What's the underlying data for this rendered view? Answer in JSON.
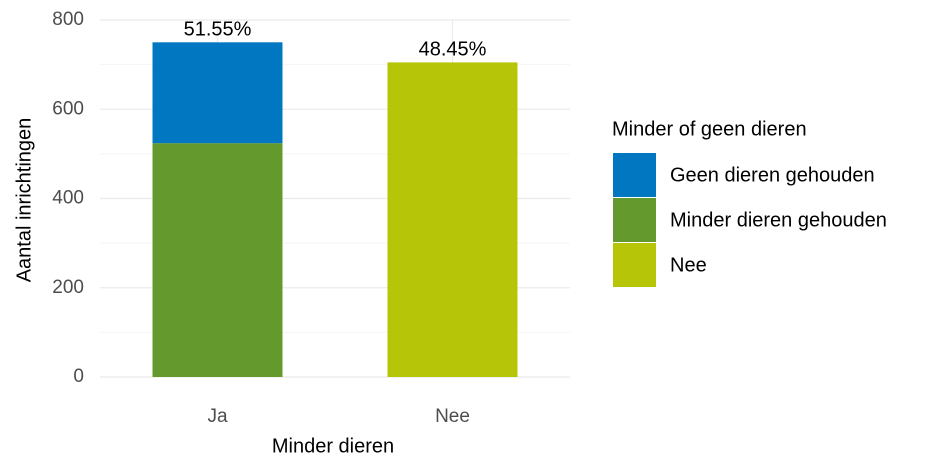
{
  "chart_data": {
    "type": "stacked_bar",
    "x_label": "Minder dieren",
    "y_label": "Aantal inrichtingen",
    "categories": [
      "Ja",
      "Nee"
    ],
    "series": [
      {
        "name": "Geen dieren gehouden",
        "color": "#0077c0",
        "values": [
          226,
          null
        ]
      },
      {
        "name": "Minder dieren gehouden",
        "color": "#64992e",
        "values": [
          524,
          null
        ]
      },
      {
        "name": "Nee",
        "color": "#b6c508",
        "values": [
          null,
          705
        ]
      }
    ],
    "stack_order": [
      1,
      0,
      2
    ],
    "percent_labels": [
      "51.55%",
      "48.45%"
    ],
    "legend_title": "Minder of geen dieren",
    "ylim": [
      0,
      800
    ],
    "yticks": [
      0,
      200,
      400,
      600,
      800
    ],
    "grid": true
  }
}
